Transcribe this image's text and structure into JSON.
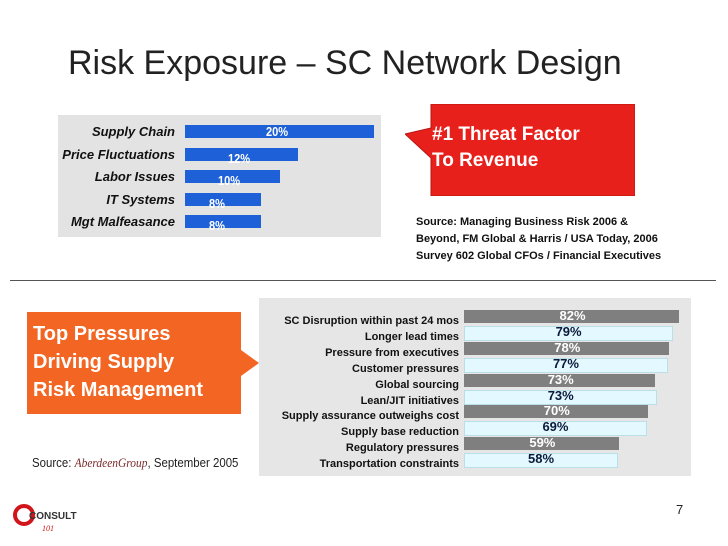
{
  "slide": {
    "title": "Risk Exposure – SC Network Design",
    "callout": {
      "line1": "#1 Threat Factor",
      "line2": "To Revenue",
      "color": "#e8201c"
    },
    "source_top": {
      "line1": "Source: Managing Business Risk 2006 &",
      "line2": "Beyond, FM Global & Harris / USA Today, 2006",
      "line3": "Survey 602 Global CFOs / Financial Executives"
    },
    "pressure_box": {
      "line1": "Top Pressures",
      "line2": "Driving Supply",
      "line3": "Risk Management",
      "color": "#f26522"
    },
    "source_bottom": {
      "prefix": "Source: ",
      "brand": "AberdeenGroup",
      "suffix": ", September 2005"
    },
    "logo_text": "CONSULT",
    "logo_sub": "101",
    "page_number": "7"
  },
  "chart_data": [
    {
      "type": "bar",
      "orientation": "horizontal",
      "categories": [
        "Supply Chain",
        "Price Fluctuations",
        "Labor Issues",
        "IT Systems",
        "Mgt Malfeasance"
      ],
      "values": [
        20,
        12,
        10,
        8,
        8
      ],
      "value_labels": [
        "20%",
        "12%",
        "10%",
        "8%",
        "8%"
      ],
      "bar_color": "#1e60d8",
      "xlim": [
        0,
        20
      ]
    },
    {
      "type": "bar",
      "orientation": "horizontal",
      "categories": [
        "SC Disruption within past 24 mos",
        "Longer lead times",
        "Pressure from executives",
        "Customer pressures",
        "Global sourcing",
        "Lean/JIT initiatives",
        "Supply assurance outweighs cost",
        "Supply base reduction",
        "Regulatory pressures",
        "Transportation constraints"
      ],
      "values": [
        82,
        79,
        78,
        77,
        73,
        73,
        70,
        69,
        59,
        58
      ],
      "value_labels": [
        "82%",
        "79%",
        "78%",
        "77%",
        "73%",
        "73%",
        "70%",
        "69%",
        "59%",
        "58%"
      ],
      "bar_colors": [
        "#7f7f7f",
        "#e4f8ff"
      ],
      "xlim": [
        0,
        82
      ]
    }
  ]
}
